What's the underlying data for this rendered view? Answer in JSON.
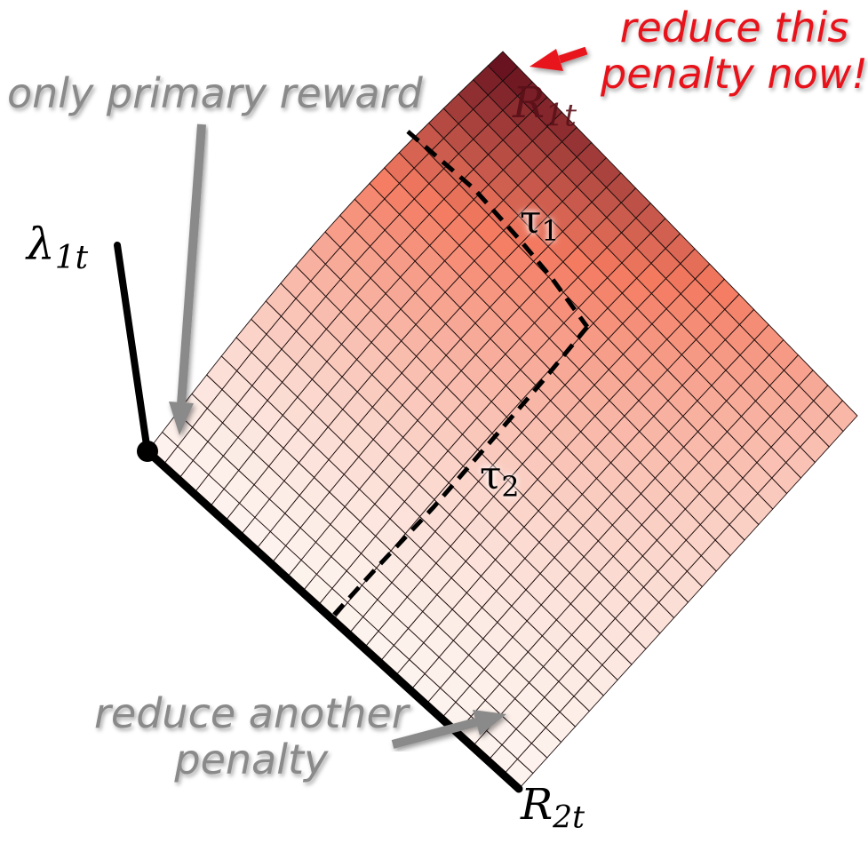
{
  "annotations": {
    "only_primary_reward": "only primary reward",
    "reduce_this_penalty": [
      "reduce this",
      "penalty now!"
    ],
    "reduce_another_penalty": [
      "reduce another",
      "penalty"
    ]
  },
  "axes": {
    "lambda": {
      "symbol": "λ",
      "subscript": "1t"
    },
    "r1": {
      "symbol": "R",
      "subscript": "1t"
    },
    "r2": {
      "symbol": "R",
      "subscript": "2t"
    }
  },
  "thresholds": [
    {
      "symbol": "τ",
      "subscript": "1"
    },
    {
      "symbol": "τ",
      "subscript": "2"
    }
  ],
  "colors": {
    "surface_low": "#fdf3ee",
    "surface_mid": "#f47a60",
    "surface_high": "#6a1320",
    "gray_annotation": "#8a8a8a",
    "red_annotation": "#e8121a",
    "red_arrow": "#e8121a",
    "axis": "#000000"
  }
}
